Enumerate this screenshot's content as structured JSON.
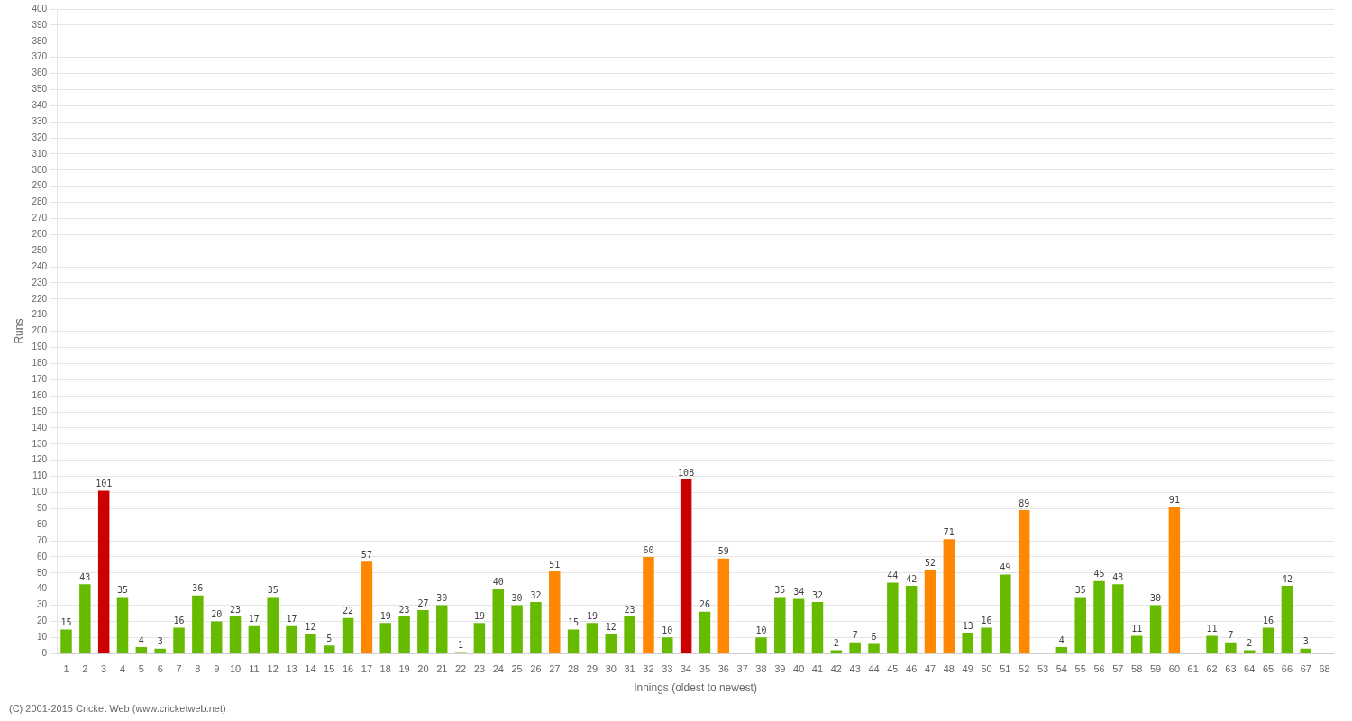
{
  "chart_data": {
    "type": "bar",
    "xlabel": "Innings (oldest to newest)",
    "ylabel": "Runs",
    "footer": "(C) 2001-2015 Cricket Web (www.cricketweb.net)",
    "categories": [
      "1",
      "2",
      "3",
      "4",
      "5",
      "6",
      "7",
      "8",
      "9",
      "10",
      "11",
      "12",
      "13",
      "14",
      "15",
      "16",
      "17",
      "18",
      "19",
      "20",
      "21",
      "22",
      "23",
      "24",
      "25",
      "26",
      "27",
      "28",
      "29",
      "30",
      "31",
      "32",
      "33",
      "34",
      "35",
      "36",
      "37",
      "38",
      "39",
      "40",
      "41",
      "42",
      "43",
      "44",
      "45",
      "46",
      "47",
      "48",
      "49",
      "50",
      "51",
      "52",
      "53",
      "54",
      "55",
      "56",
      "57",
      "58",
      "59",
      "60",
      "61",
      "62",
      "63",
      "64",
      "65",
      "66",
      "67",
      "68"
    ],
    "values": [
      15,
      43,
      101,
      35,
      4,
      3,
      16,
      36,
      20,
      23,
      17,
      35,
      17,
      12,
      5,
      22,
      57,
      19,
      23,
      27,
      30,
      1,
      19,
      40,
      30,
      32,
      51,
      15,
      19,
      12,
      23,
      60,
      10,
      108,
      26,
      59,
      0,
      10,
      35,
      34,
      32,
      2,
      7,
      6,
      44,
      42,
      52,
      71,
      13,
      16,
      49,
      89,
      0,
      4,
      35,
      45,
      43,
      11,
      30,
      91,
      0,
      11,
      7,
      2,
      16,
      42,
      3,
      0
    ],
    "value_labels": [
      "15",
      "43",
      "101",
      "35",
      "4",
      "3",
      "16",
      "36",
      "20",
      "23",
      "17",
      "35",
      "17",
      "12",
      "5",
      "22",
      "57",
      "19",
      "23",
      "27",
      "30",
      "1",
      "19",
      "40",
      "30",
      "32",
      "51",
      "15",
      "19",
      "12",
      "23",
      "60",
      "10",
      "108",
      "26",
      "59",
      null,
      "10",
      "35",
      "34",
      "32",
      "2",
      "7",
      "6",
      "44",
      "42",
      "52",
      "71",
      "13",
      "16",
      "49",
      "89",
      null,
      "4",
      "35",
      "45",
      "43",
      "11",
      "30",
      "91",
      null,
      "11",
      "7",
      "2",
      "16",
      "42",
      "3",
      null
    ],
    "colors": [
      "#66bb00",
      "#66bb00",
      "#cc0000",
      "#66bb00",
      "#66bb00",
      "#66bb00",
      "#66bb00",
      "#66bb00",
      "#66bb00",
      "#66bb00",
      "#66bb00",
      "#66bb00",
      "#66bb00",
      "#66bb00",
      "#66bb00",
      "#66bb00",
      "#ff8800",
      "#66bb00",
      "#66bb00",
      "#66bb00",
      "#66bb00",
      "#66bb00",
      "#66bb00",
      "#66bb00",
      "#66bb00",
      "#66bb00",
      "#ff8800",
      "#66bb00",
      "#66bb00",
      "#66bb00",
      "#66bb00",
      "#ff8800",
      "#66bb00",
      "#cc0000",
      "#66bb00",
      "#ff8800",
      "#66bb00",
      "#66bb00",
      "#66bb00",
      "#66bb00",
      "#66bb00",
      "#66bb00",
      "#66bb00",
      "#66bb00",
      "#66bb00",
      "#66bb00",
      "#ff8800",
      "#ff8800",
      "#66bb00",
      "#66bb00",
      "#66bb00",
      "#ff8800",
      "#66bb00",
      "#66bb00",
      "#66bb00",
      "#66bb00",
      "#66bb00",
      "#66bb00",
      "#66bb00",
      "#ff8800",
      "#66bb00",
      "#66bb00",
      "#66bb00",
      "#66bb00",
      "#66bb00",
      "#66bb00",
      "#66bb00",
      "#66bb00"
    ],
    "ylim": [
      0,
      400
    ],
    "yticks": [
      0,
      10,
      20,
      30,
      40,
      50,
      60,
      70,
      80,
      90,
      100,
      110,
      120,
      130,
      140,
      150,
      160,
      170,
      180,
      190,
      200,
      210,
      220,
      230,
      240,
      250,
      260,
      270,
      280,
      290,
      300,
      310,
      320,
      330,
      340,
      350,
      360,
      370,
      380,
      390,
      400
    ],
    "grid": true,
    "data_labels": true
  }
}
